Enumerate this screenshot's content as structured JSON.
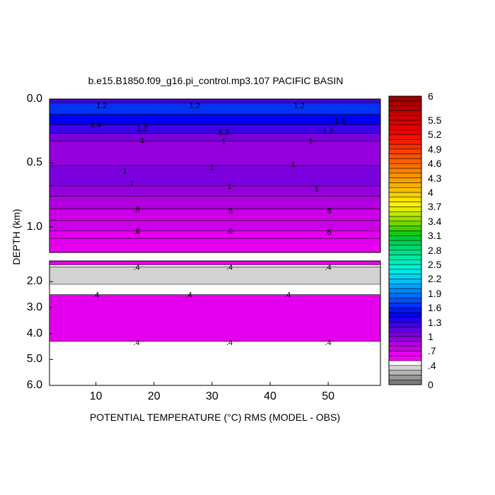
{
  "chart_data": {
    "type": "heatmap",
    "title": "b.e15.B1850.f09_g16.pi_control.mp3.107 PACIFIC BASIN",
    "xlabel": "POTENTIAL TEMPERATURE (°C) RMS (MODEL - OBS)",
    "ylabel": "DEPTH (km)",
    "xlim": [
      2,
      59
    ],
    "x_ticks": [
      "10",
      "20",
      "30",
      "40",
      "50"
    ],
    "x_tick_values": [
      10,
      20,
      30,
      40,
      50
    ],
    "panels": [
      {
        "name": "upper",
        "ylim": [
          0.0,
          1.2
        ],
        "y_ticks": [
          "0.0",
          "0.5",
          "1.0"
        ],
        "y_tick_values": [
          0.0,
          0.5,
          1.0
        ],
        "bands": [
          {
            "from": 0.0,
            "to": 0.03,
            "value": 1.2
          },
          {
            "from": 0.03,
            "to": 0.12,
            "value": 1.6
          },
          {
            "from": 0.12,
            "to": 0.2,
            "value": 1.4
          },
          {
            "from": 0.2,
            "to": 0.27,
            "value": 1.2
          },
          {
            "from": 0.27,
            "to": 0.33,
            "value": 1.0
          },
          {
            "from": 0.33,
            "to": 0.52,
            "value": 0.9
          },
          {
            "from": 0.52,
            "to": 0.68,
            "value": 1.0
          },
          {
            "from": 0.68,
            "to": 0.76,
            "value": 0.9
          },
          {
            "from": 0.76,
            "to": 0.86,
            "value": 0.8
          },
          {
            "from": 0.86,
            "to": 0.95,
            "value": 0.75
          },
          {
            "from": 0.95,
            "to": 1.03,
            "value": 0.7
          },
          {
            "from": 1.03,
            "to": 1.09,
            "value": 0.65
          },
          {
            "from": 1.09,
            "to": 1.2,
            "value": 0.6
          }
        ],
        "contour_labels": [
          {
            "text": "1.2",
            "x": 11,
            "y": 0.05
          },
          {
            "text": "1.2",
            "x": 27,
            "y": 0.05
          },
          {
            "text": "1.2",
            "x": 45,
            "y": 0.05
          },
          {
            "text": "1.4",
            "x": 10,
            "y": 0.2
          },
          {
            "text": "1.4",
            "x": 52,
            "y": 0.17
          },
          {
            "text": "1.2",
            "x": 18,
            "y": 0.23
          },
          {
            "text": "1.2",
            "x": 32,
            "y": 0.26
          },
          {
            "text": "1.2",
            "x": 50,
            "y": 0.25
          },
          {
            "text": "1",
            "x": 18,
            "y": 0.32
          },
          {
            "text": "1",
            "x": 32,
            "y": 0.33
          },
          {
            "text": "1",
            "x": 47,
            "y": 0.33
          },
          {
            "text": "1",
            "x": 15,
            "y": 0.56
          },
          {
            "text": "1",
            "x": 30,
            "y": 0.53
          },
          {
            "text": "1",
            "x": 44,
            "y": 0.51
          },
          {
            "text": ".7",
            "x": 16,
            "y": 0.66
          },
          {
            "text": "1",
            "x": 33,
            "y": 0.68
          },
          {
            "text": "1",
            "x": 48,
            "y": 0.7
          },
          {
            "text": ".8",
            "x": 17,
            "y": 0.86
          },
          {
            "text": ".8",
            "x": 33,
            "y": 0.87
          },
          {
            "text": ".8",
            "x": 50,
            "y": 0.87
          },
          {
            "text": ".6",
            "x": 17,
            "y": 1.03
          },
          {
            "text": ".6",
            "x": 33,
            "y": 1.03
          },
          {
            "text": ".6",
            "x": 50,
            "y": 1.04
          }
        ]
      },
      {
        "name": "lower",
        "ylim": [
          1.2,
          6.0
        ],
        "y_ticks": [
          "2.0",
          "3.0",
          "4.0",
          "5.0",
          "6.0"
        ],
        "y_tick_values": [
          2.0,
          3.0,
          4.0,
          5.0,
          6.0
        ],
        "bands": [
          {
            "from": 1.2,
            "to": 1.35,
            "value": 0.6
          },
          {
            "from": 1.35,
            "to": 1.43,
            "value": 0.45
          },
          {
            "from": 1.43,
            "to": 2.1,
            "value": 0.35
          },
          {
            "from": 2.1,
            "to": 2.5,
            "value": 0.4
          },
          {
            "from": 2.5,
            "to": 4.3,
            "value": 0.6
          },
          {
            "from": 4.3,
            "to": 5.4,
            "value": 0.4
          },
          {
            "from": 5.4,
            "to": 6.0,
            "value": null
          }
        ],
        "contour_labels": [
          {
            "text": ".4",
            "x": 17,
            "y": 1.43
          },
          {
            "text": ".4",
            "x": 33,
            "y": 1.43
          },
          {
            "text": ".4",
            "x": 50,
            "y": 1.43
          },
          {
            "text": ".4",
            "x": 10,
            "y": 2.5
          },
          {
            "text": ".4",
            "x": 26,
            "y": 2.5
          },
          {
            "text": ".4",
            "x": 43,
            "y": 2.5
          },
          {
            "text": ".4",
            "x": 17,
            "y": 4.33
          },
          {
            "text": ".4",
            "x": 33,
            "y": 4.33
          },
          {
            "text": ".4",
            "x": 50,
            "y": 4.33
          }
        ]
      }
    ],
    "colorbar": {
      "labels": [
        "6",
        "5.5",
        "5.2",
        "4.9",
        "4.6",
        "4.3",
        "4",
        "3.7",
        "3.4",
        "3.1",
        "2.8",
        "2.5",
        "2.2",
        "1.9",
        "1.6",
        "1.3",
        "1",
        ".7",
        ".4",
        "0"
      ],
      "label_values": [
        6,
        5.5,
        5.2,
        4.9,
        4.6,
        4.3,
        4.0,
        3.7,
        3.4,
        3.1,
        2.8,
        2.5,
        2.2,
        1.9,
        1.6,
        1.3,
        1.0,
        0.7,
        0.4,
        0
      ],
      "levels": [
        0,
        0.1,
        0.2,
        0.3,
        0.4,
        0.5,
        0.6,
        0.7,
        0.8,
        0.9,
        1.0,
        1.1,
        1.2,
        1.3,
        1.4,
        1.5,
        1.6,
        1.7,
        1.8,
        1.9,
        2.0,
        2.1,
        2.2,
        2.3,
        2.4,
        2.5,
        2.6,
        2.7,
        2.8,
        2.9,
        3.0,
        3.1,
        3.2,
        3.3,
        3.4,
        3.5,
        3.6,
        3.7,
        3.8,
        3.9,
        4.0,
        4.1,
        4.2,
        4.3,
        4.4,
        4.5,
        4.6,
        4.7,
        4.8,
        4.9,
        5.0,
        5.1,
        5.2,
        5.3,
        5.4,
        5.5,
        5.6,
        5.7,
        5.8,
        5.9,
        6.0
      ],
      "colors": [
        "#7a7a7a",
        "#969696",
        "#b5b5b5",
        "#d2d2d2",
        "#ffffff",
        "#f400f4",
        "#e400ee",
        "#cc00e6",
        "#b000e0",
        "#9400dd",
        "#7a00de",
        "#5e00e2",
        "#4000e8",
        "#2000ee",
        "#0000f2",
        "#0018f2",
        "#0034f4",
        "#0050f5",
        "#006cf6",
        "#0088f8",
        "#00a4f8",
        "#00c0fa",
        "#00d6f4",
        "#00e8e8",
        "#00f2d4",
        "#00eebc",
        "#00e8a4",
        "#00e08c",
        "#00d870",
        "#00d054",
        "#00cc38",
        "#10cc10",
        "#40d000",
        "#70d800",
        "#98e000",
        "#c0e800",
        "#e0ee00",
        "#f8f000",
        "#f8e000",
        "#f8d000",
        "#f8c000",
        "#f8b000",
        "#f8a000",
        "#f89000",
        "#f88000",
        "#f87000",
        "#f86000",
        "#f85000",
        "#f84000",
        "#f83000",
        "#f82000",
        "#f81000",
        "#f00000",
        "#e40000",
        "#d80000",
        "#cc0000",
        "#c00000",
        "#b40000",
        "#a80000",
        "#9c0000"
      ]
    }
  }
}
